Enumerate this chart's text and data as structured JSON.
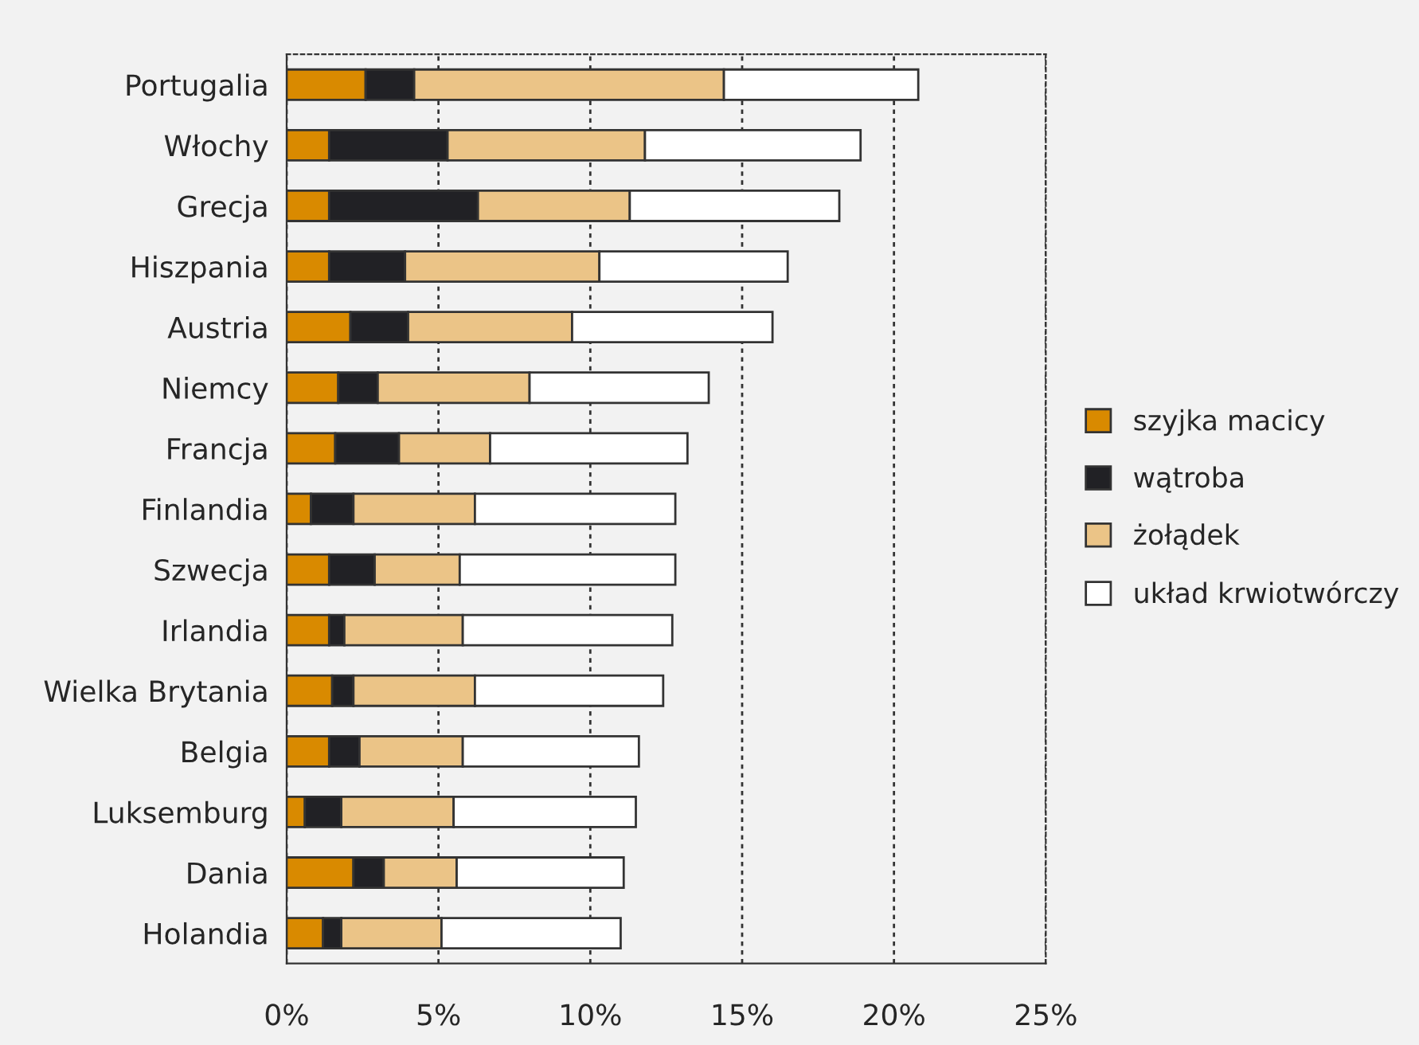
{
  "chart_data": {
    "type": "bar",
    "orientation": "horizontal",
    "stacked": true,
    "categories": [
      "Portugalia",
      "Włochy",
      "Grecja",
      "Hiszpania",
      "Austria",
      "Niemcy",
      "Francja",
      "Finlandia",
      "Szwecja",
      "Irlandia",
      "Wielka Brytania",
      "Belgia",
      "Luksemburg",
      "Dania",
      "Holandia"
    ],
    "series": [
      {
        "name": "szyjka macicy",
        "color": "#d98a00",
        "values": [
          2.6,
          1.4,
          1.4,
          1.4,
          2.1,
          1.7,
          1.6,
          0.8,
          1.4,
          1.4,
          1.5,
          1.4,
          0.6,
          2.2,
          1.2
        ]
      },
      {
        "name": "wątroba",
        "color": "#212125",
        "values": [
          1.6,
          3.9,
          4.9,
          2.5,
          1.9,
          1.3,
          2.1,
          1.4,
          1.5,
          0.5,
          0.7,
          1.0,
          1.2,
          1.0,
          0.6
        ]
      },
      {
        "name": "żołądek",
        "color": "#ebc487",
        "values": [
          10.2,
          6.5,
          5.0,
          6.4,
          5.4,
          5.0,
          3.0,
          4.0,
          2.8,
          3.9,
          4.0,
          3.4,
          3.7,
          2.4,
          3.3
        ]
      },
      {
        "name": "układ krwiotwórczy",
        "color": "#ffffff",
        "values": [
          6.4,
          7.1,
          6.9,
          6.2,
          6.6,
          5.9,
          6.5,
          6.6,
          7.1,
          6.9,
          6.2,
          5.8,
          6.0,
          5.5,
          5.9
        ]
      }
    ],
    "xlim": [
      0,
      25
    ],
    "xticks": [
      {
        "value": 0,
        "label": "0%"
      },
      {
        "value": 5,
        "label": "5%"
      },
      {
        "value": 10,
        "label": "10%"
      },
      {
        "value": 15,
        "label": "15%"
      },
      {
        "value": 20,
        "label": "20%"
      },
      {
        "value": 25,
        "label": "25%"
      }
    ],
    "grid": "x",
    "legend": "right"
  }
}
